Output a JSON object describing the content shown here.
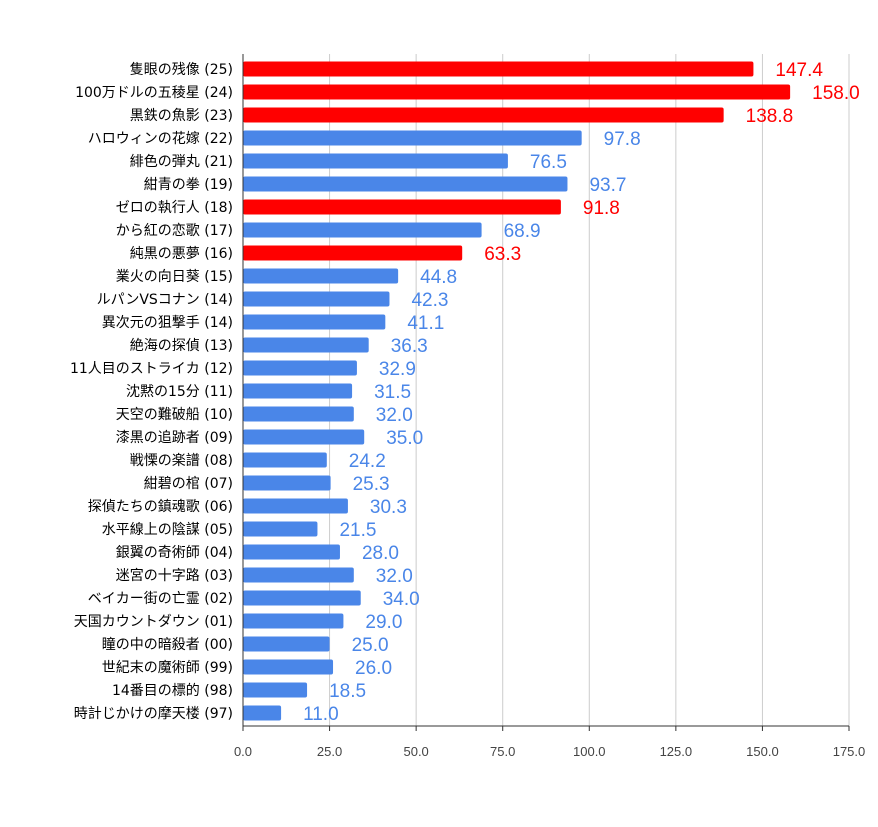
{
  "chart_data": {
    "type": "bar",
    "orientation": "horizontal",
    "title": "",
    "xlabel": "",
    "ylabel": "",
    "xlim": [
      0,
      175
    ],
    "grid": true,
    "legend": "none",
    "ticks": [
      "0.0",
      "25.0",
      "50.0",
      "75.0",
      "100.0",
      "125.0",
      "150.0",
      "175.0"
    ],
    "tick_values": [
      0,
      25,
      50,
      75,
      100,
      125,
      150,
      175
    ],
    "colors": {
      "default": "#4a86e8",
      "highlight": "#ff0000"
    },
    "categories": [
      "隻眼の残像 (25)",
      "100万ドルの五稜星 (24)",
      "黒鉄の魚影 (23)",
      "ハロウィンの花嫁 (22)",
      "緋色の弾丸 (21)",
      "紺青の拳 (19)",
      "ゼロの執行人 (18)",
      "から紅の恋歌 (17)",
      "純黒の悪夢 (16)",
      "業火の向日葵 (15)",
      "ルパンVSコナン (14)",
      "異次元の狙撃手 (14)",
      "絶海の探偵 (13)",
      "11人目のストライカ (12)",
      "沈黙の15分 (11)",
      "天空の難破船 (10)",
      "漆黒の追跡者 (09)",
      "戦慄の楽譜 (08)",
      "紺碧の棺 (07)",
      "探偵たちの鎮魂歌 (06)",
      "水平線上の陰謀 (05)",
      "銀翼の奇術師 (04)",
      "迷宮の十字路 (03)",
      "ベイカー街の亡霊 (02)",
      "天国カウントダウン (01)",
      "瞳の中の暗殺者 (00)",
      "世紀末の魔術師 (99)",
      "14番目の標的 (98)",
      "時計じかけの摩天楼 (97)"
    ],
    "values": [
      147.4,
      158.0,
      138.8,
      97.8,
      76.5,
      93.7,
      91.8,
      68.9,
      63.3,
      44.8,
      42.3,
      41.1,
      36.3,
      32.9,
      31.5,
      32.0,
      35.0,
      24.2,
      25.3,
      30.3,
      21.5,
      28.0,
      32.0,
      34.0,
      29.0,
      25.0,
      26.0,
      18.5,
      11.0
    ],
    "value_labels": [
      "147.4",
      "158.0",
      "138.8",
      "97.8",
      "76.5",
      "93.7",
      "91.8",
      "68.9",
      "63.3",
      "44.8",
      "42.3",
      "41.1",
      "36.3",
      "32.9",
      "31.5",
      "32.0",
      "35.0",
      "24.2",
      "25.3",
      "30.3",
      "21.5",
      "28.0",
      "32.0",
      "34.0",
      "29.0",
      "25.0",
      "26.0",
      "18.5",
      "11.0"
    ],
    "highlighted": [
      true,
      true,
      true,
      false,
      false,
      false,
      true,
      false,
      true,
      false,
      false,
      false,
      false,
      false,
      false,
      false,
      false,
      false,
      false,
      false,
      false,
      false,
      false,
      false,
      false,
      false,
      false,
      false,
      false
    ]
  }
}
